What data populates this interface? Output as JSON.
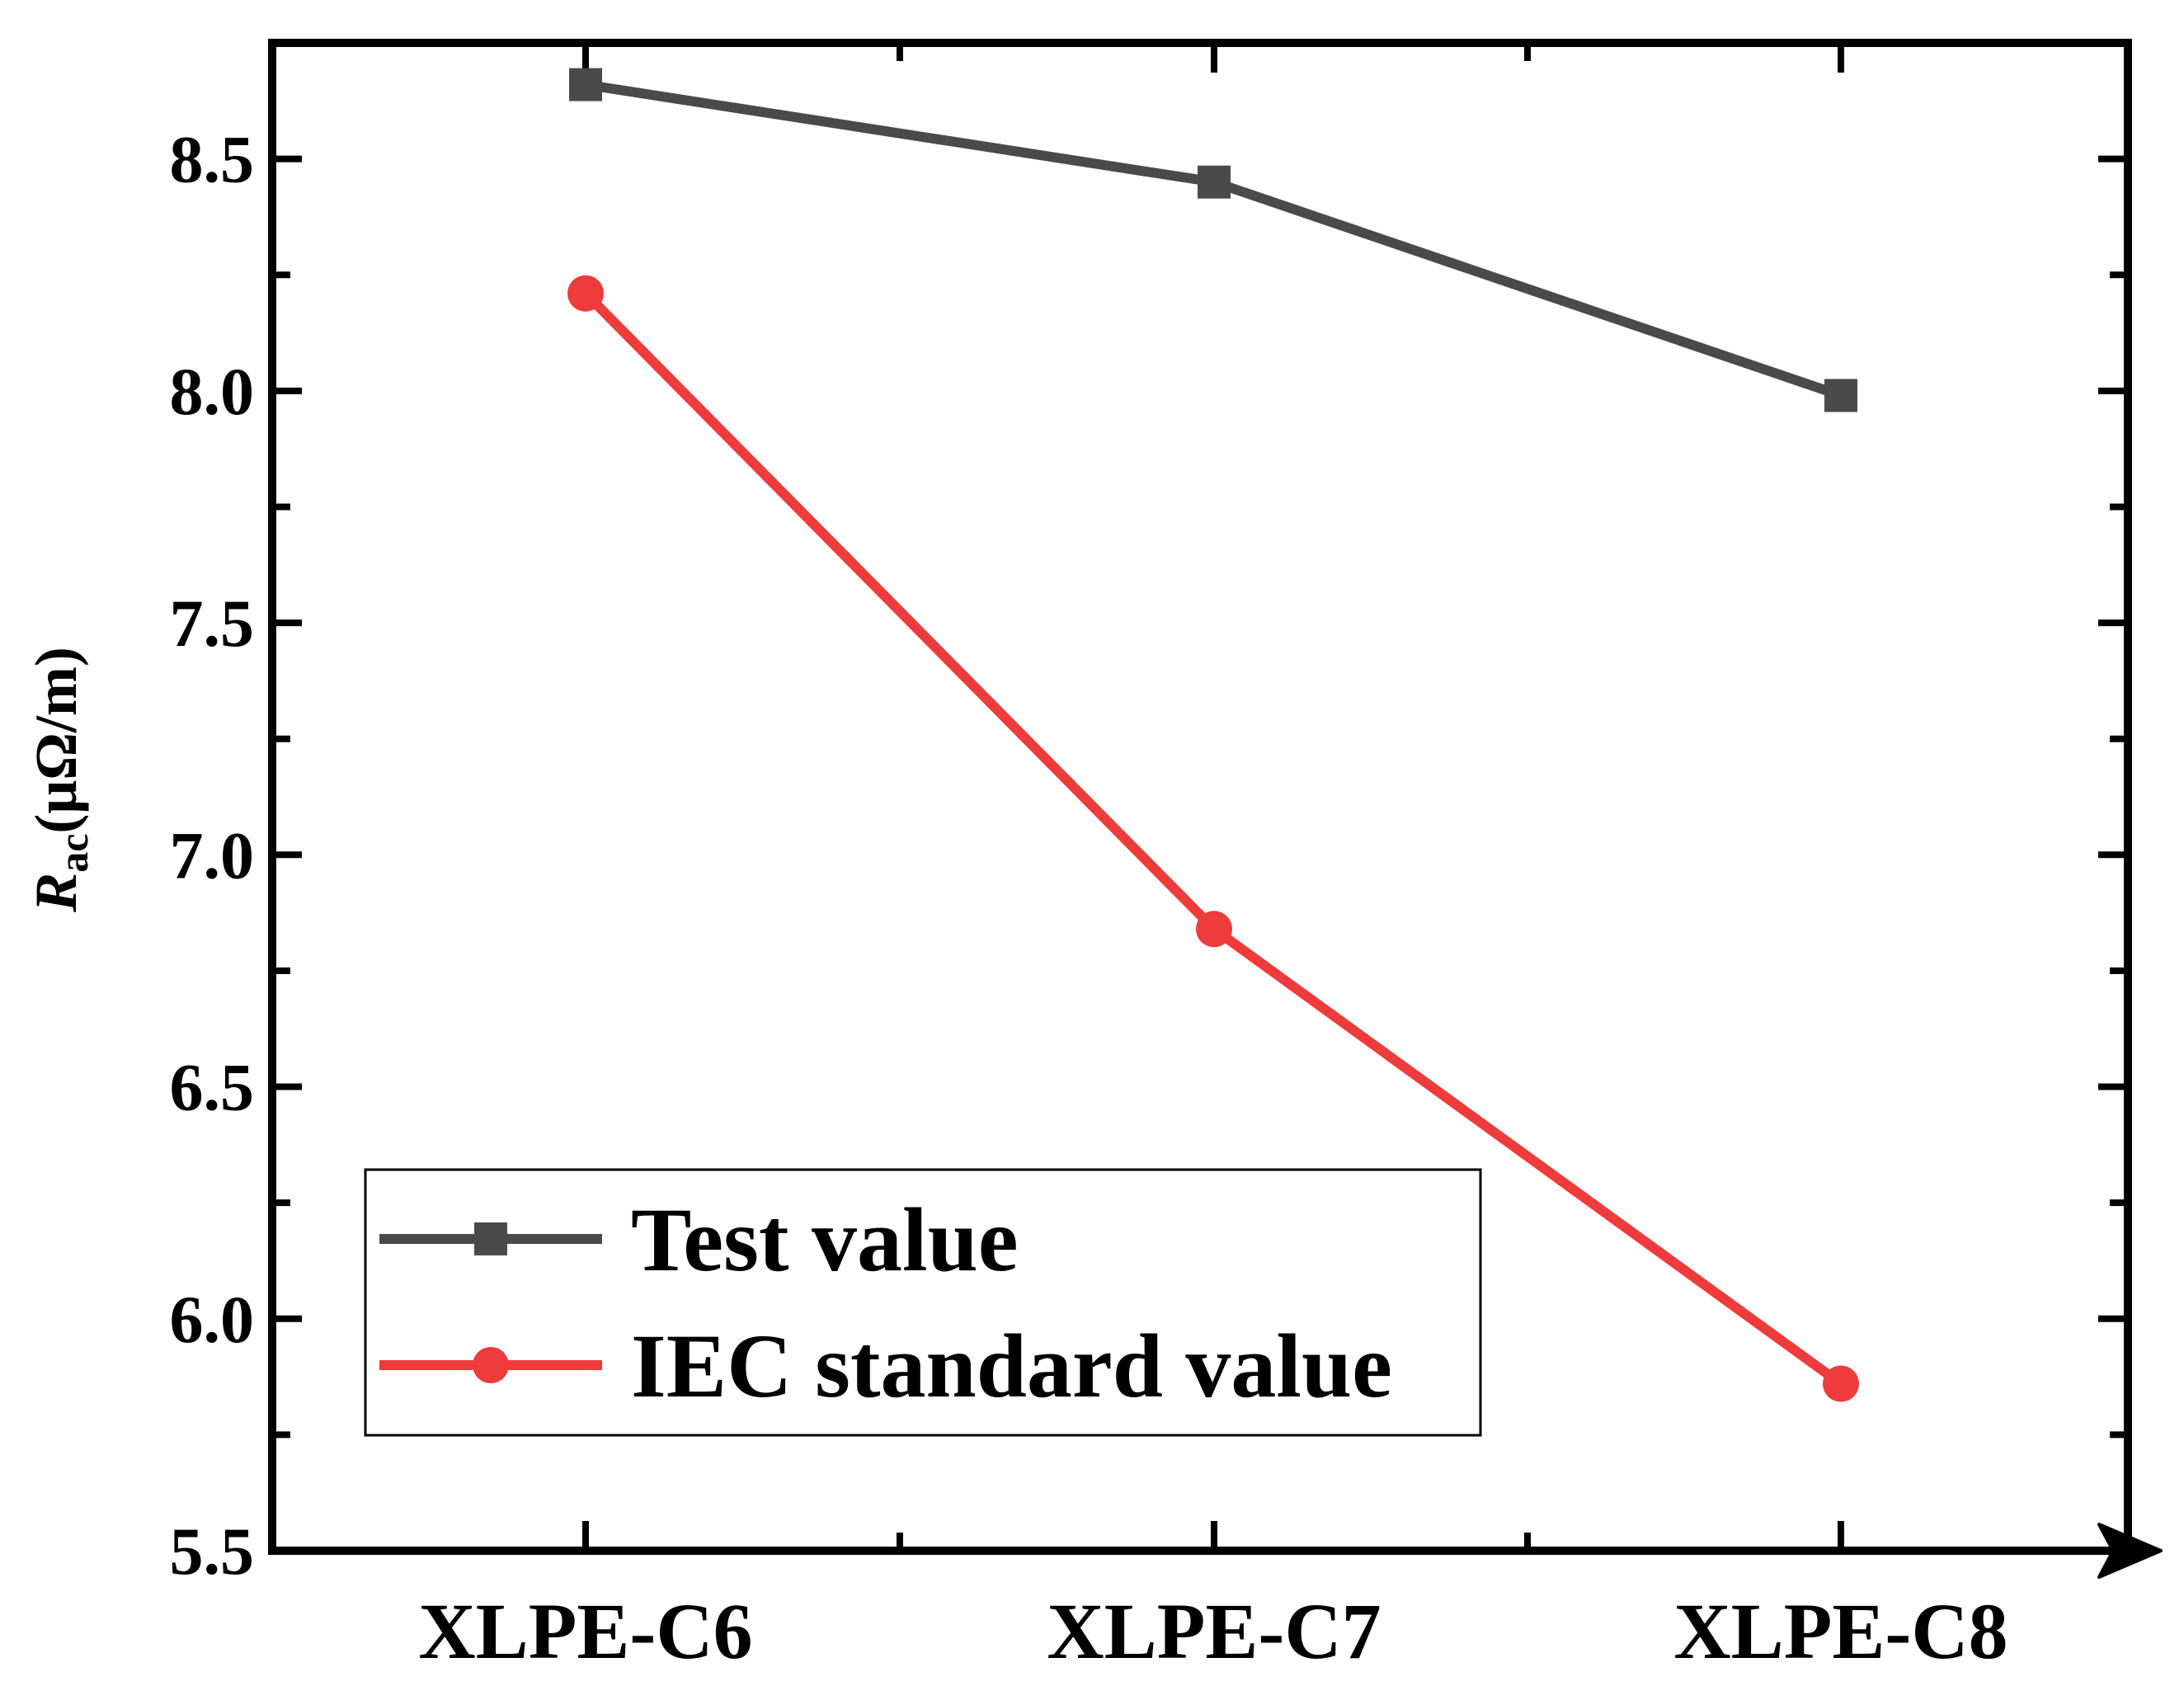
{
  "chart_data": {
    "type": "line",
    "title": "",
    "xlabel": "",
    "ylabel": {
      "symbol": "R",
      "subscript": "ac",
      "unit": "(μΩ/m)"
    },
    "categories": [
      "XLPE-C6",
      "XLPE-C7",
      "XLPE-C8"
    ],
    "ylim": [
      5.5,
      8.75
    ],
    "yticks": [
      5.5,
      6.0,
      6.5,
      7.0,
      7.5,
      8.0,
      8.5
    ],
    "ytick_labels": [
      "5.5",
      "6.0",
      "6.5",
      "7.0",
      "7.5",
      "8.0",
      "8.5"
    ],
    "legend_position": "bottom-left",
    "series": [
      {
        "name": "Test value",
        "marker": "square",
        "color": "#4a4a4a",
        "values": [
          8.66,
          8.45,
          7.99
        ]
      },
      {
        "name": "IEC standard value",
        "marker": "circle",
        "color": "#ee3b3b",
        "values": [
          8.21,
          6.84,
          5.86
        ]
      }
    ]
  }
}
